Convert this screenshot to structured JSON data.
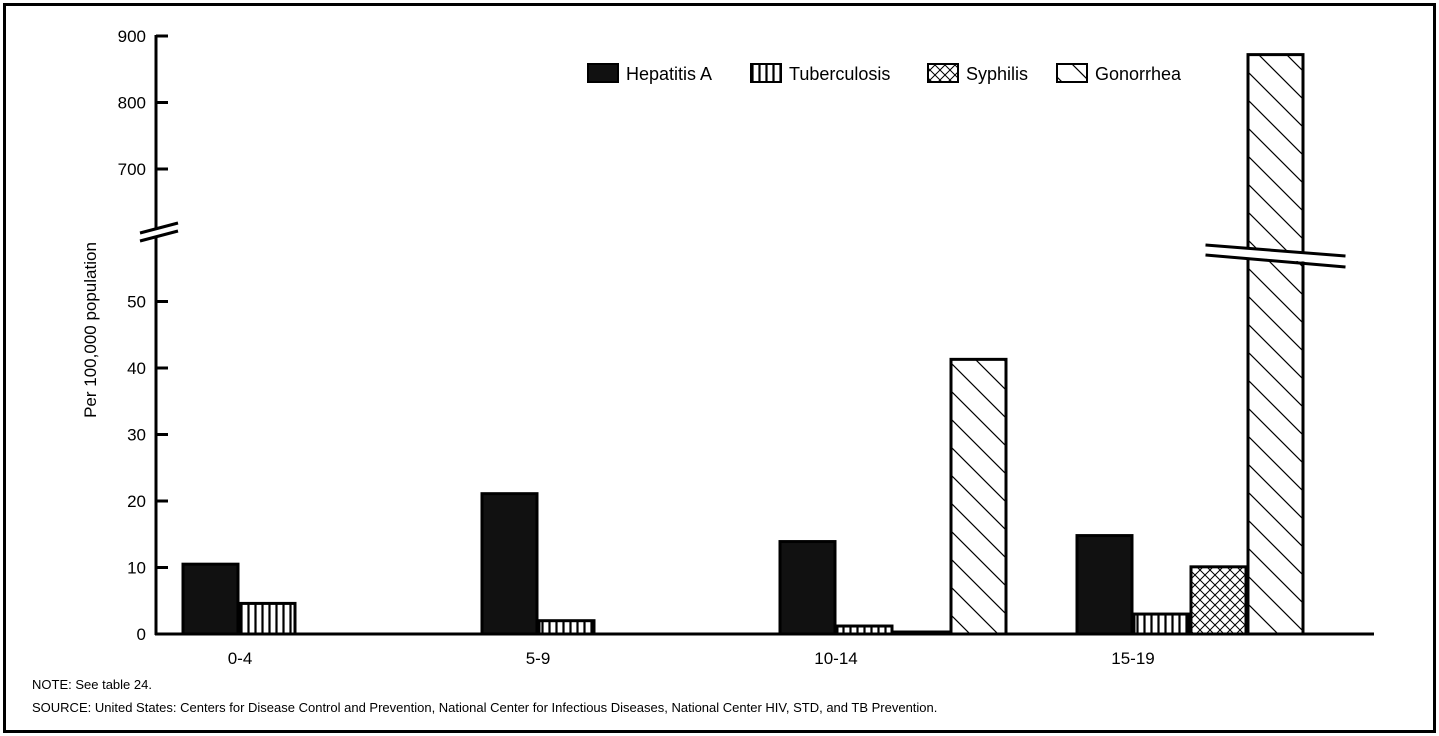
{
  "chart_data": {
    "type": "bar",
    "ylabel": "Per 100,000 population",
    "categories": [
      "0-4",
      "5-9",
      "10-14",
      "15-19"
    ],
    "y_ticks_lower": [
      0,
      10,
      20,
      30,
      40,
      50
    ],
    "y_ticks_upper": [
      700,
      800,
      900
    ],
    "axis_break": true,
    "legend_position": "top-right",
    "series": [
      {
        "name": "Hepatitis A",
        "pattern": "solid",
        "values": [
          10.5,
          21.1,
          13.9,
          14.8
        ]
      },
      {
        "name": "Tuberculosis",
        "pattern": "vertical-lines",
        "values": [
          4.6,
          2.0,
          1.2,
          3.0
        ]
      },
      {
        "name": "Syphilis",
        "pattern": "crosshatch",
        "values": [
          0,
          0,
          0.3,
          10.1
        ]
      },
      {
        "name": "Gonorrhea",
        "pattern": "diagonal-lines",
        "values": [
          0,
          0,
          41.3,
          872
        ]
      }
    ],
    "colors": {
      "ink": "#000000",
      "paper": "#ffffff"
    }
  },
  "notes": {
    "note": "NOTE: See table 24.",
    "source": "SOURCE: United States: Centers for Disease Control and Prevention, National Center for Infectious Diseases, National Center HIV, STD, and TB Prevention."
  }
}
